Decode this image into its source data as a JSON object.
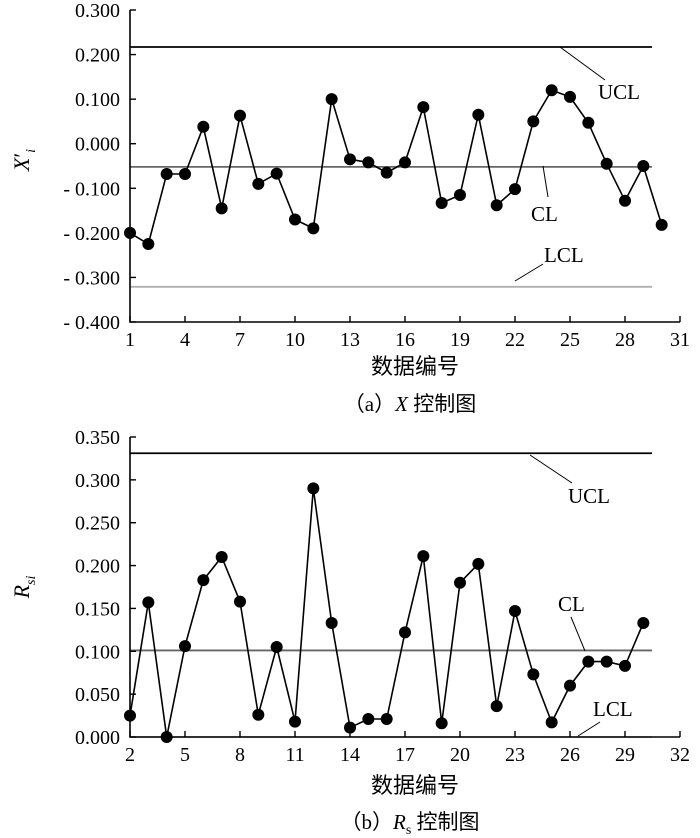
{
  "chart_data": [
    {
      "type": "line",
      "title": "（a）X 控制图",
      "caption_prefix": "（a）",
      "caption_var": "X",
      "caption_suffix": " 控制图",
      "xlabel": "数据编号",
      "ylabel_base": "X",
      "ylabel_prime": "′",
      "ylabel_sub": "i",
      "xlim": [
        1,
        31
      ],
      "ylim": [
        -0.4,
        0.3
      ],
      "xticks": [
        1,
        4,
        7,
        10,
        13,
        16,
        19,
        22,
        25,
        28,
        31
      ],
      "xtick_labels": [
        "1",
        "4",
        "7",
        "10",
        "13",
        "16",
        "19",
        "22",
        "25",
        "28",
        "31"
      ],
      "yticks": [
        0.3,
        0.2,
        0.1,
        0.0,
        -0.1,
        -0.2,
        -0.3,
        -0.4
      ],
      "ytick_labels": [
        "0.300",
        "0.200",
        "0.100",
        "0.000",
        "- 0.100",
        "- 0.200",
        "- 0.300",
        "- 0.400"
      ],
      "control_lines": [
        {
          "name": "UCL",
          "label": "UCL",
          "value": 0.217,
          "color": "#000000"
        },
        {
          "name": "CL",
          "label": "CL",
          "value": -0.052,
          "color": "#666666"
        },
        {
          "name": "LCL",
          "label": "LCL",
          "value": -0.321,
          "color": "#b0b0b0"
        }
      ],
      "series": [
        {
          "name": "X",
          "x": [
            1,
            2,
            3,
            4,
            5,
            6,
            7,
            8,
            9,
            10,
            11,
            12,
            13,
            14,
            15,
            16,
            17,
            18,
            19,
            20,
            21,
            22,
            23,
            24,
            25,
            26,
            27,
            28,
            29,
            30
          ],
          "y": [
            -0.2,
            -0.225,
            -0.068,
            -0.068,
            0.038,
            -0.145,
            0.063,
            -0.09,
            -0.067,
            -0.17,
            -0.19,
            0.1,
            -0.035,
            -0.042,
            -0.065,
            -0.042,
            0.082,
            -0.133,
            -0.115,
            0.065,
            -0.138,
            -0.102,
            0.05,
            0.12,
            0.105,
            0.047,
            -0.045,
            -0.128,
            -0.05,
            -0.182
          ]
        }
      ]
    },
    {
      "type": "line",
      "title": "（b）Rs 控制图",
      "caption_prefix": "（b）",
      "caption_var": "R",
      "caption_sub": "s",
      "caption_suffix": " 控制图",
      "xlabel": "数据编号",
      "ylabel_base": "R",
      "ylabel_sub": "si",
      "xlim": [
        2,
        32
      ],
      "ylim": [
        0,
        0.35
      ],
      "xticks": [
        2,
        5,
        8,
        11,
        14,
        17,
        20,
        23,
        26,
        29,
        32
      ],
      "xtick_labels": [
        "2",
        "5",
        "8",
        "11",
        "14",
        "17",
        "20",
        "23",
        "26",
        "29",
        "32"
      ],
      "yticks": [
        0.35,
        0.3,
        0.25,
        0.2,
        0.15,
        0.1,
        0.05,
        0.0
      ],
      "ytick_labels": [
        "0.350",
        "0.300",
        "0.250",
        "0.200",
        "0.150",
        "0.100",
        "0.050",
        "0.000"
      ],
      "control_lines": [
        {
          "name": "UCL",
          "label": "UCL",
          "value": 0.331,
          "color": "#000000"
        },
        {
          "name": "CL",
          "label": "CL",
          "value": 0.101,
          "color": "#666666"
        },
        {
          "name": "LCL",
          "label": "LCL",
          "value": 0.0,
          "color": "#b0b0b0"
        }
      ],
      "series": [
        {
          "name": "Rs",
          "x": [
            2,
            3,
            4,
            5,
            6,
            7,
            8,
            9,
            10,
            11,
            12,
            13,
            14,
            15,
            16,
            17,
            18,
            19,
            20,
            21,
            22,
            23,
            24,
            25,
            26,
            27,
            28,
            29,
            30
          ],
          "y": [
            0.025,
            0.157,
            0.0,
            0.106,
            0.183,
            0.21,
            0.158,
            0.026,
            0.105,
            0.018,
            0.29,
            0.133,
            0.011,
            0.021,
            0.021,
            0.122,
            0.211,
            0.016,
            0.18,
            0.202,
            0.036,
            0.147,
            0.073,
            0.017,
            0.06,
            0.088,
            0.088,
            0.083,
            0.133
          ]
        }
      ]
    }
  ]
}
